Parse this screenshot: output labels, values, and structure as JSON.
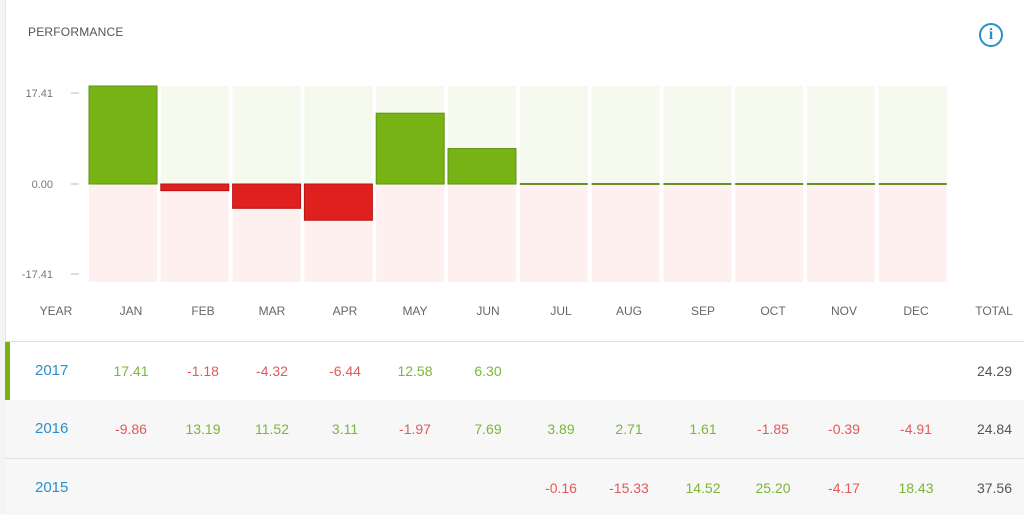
{
  "title": "PERFORMANCE",
  "info_icon": "i",
  "colors": {
    "positive": "#77b314",
    "negative": "#e01f1f",
    "positive_bg": "#f5f9ee",
    "negative_bg": "#fdf0ef",
    "link": "#2a8fc9"
  },
  "chart_data": {
    "type": "bar",
    "categories": [
      "JAN",
      "FEB",
      "MAR",
      "APR",
      "MAY",
      "JUN",
      "JUL",
      "AUG",
      "SEP",
      "OCT",
      "NOV",
      "DEC"
    ],
    "values": [
      17.41,
      -1.18,
      -4.32,
      -6.44,
      12.58,
      6.3,
      0,
      0,
      0,
      0,
      0,
      0
    ],
    "yticks": [
      "17.41",
      "0.00",
      "-17.41"
    ],
    "ylim": [
      -17.41,
      17.41
    ]
  },
  "table": {
    "headers": {
      "year": "YEAR",
      "months": [
        "JAN",
        "FEB",
        "MAR",
        "APR",
        "MAY",
        "JUN",
        "JUL",
        "AUG",
        "SEP",
        "OCT",
        "NOV",
        "DEC"
      ],
      "total": "TOTAL"
    },
    "rows": [
      {
        "year": "2017",
        "values": [
          "17.41",
          "-1.18",
          "-4.32",
          "-6.44",
          "12.58",
          "6.30",
          "",
          "",
          "",
          "",
          "",
          ""
        ],
        "total": "24.29"
      },
      {
        "year": "2016",
        "values": [
          "-9.86",
          "13.19",
          "11.52",
          "3.11",
          "-1.97",
          "7.69",
          "3.89",
          "2.71",
          "1.61",
          "-1.85",
          "-0.39",
          "-4.91"
        ],
        "total": "24.84"
      },
      {
        "year": "2015",
        "values": [
          "",
          "",
          "",
          "",
          "",
          "",
          "-0.16",
          "-15.33",
          "14.52",
          "25.20",
          "-4.17",
          "18.43"
        ],
        "total": "37.56"
      }
    ]
  }
}
